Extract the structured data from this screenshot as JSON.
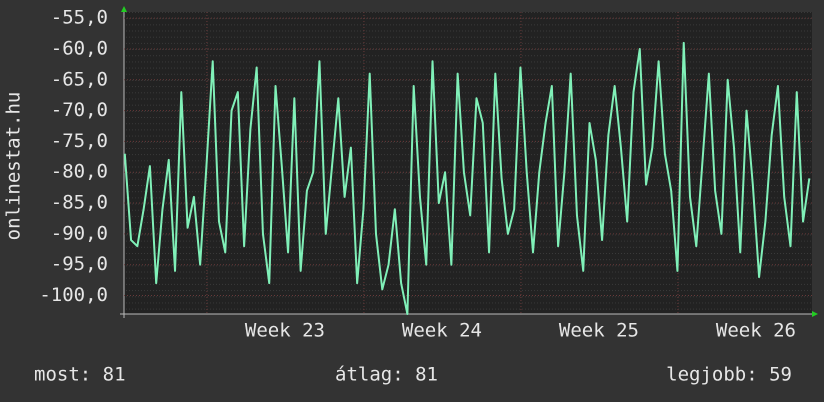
{
  "chart_data": {
    "type": "line",
    "y_label": "onlinestat.hu",
    "x": [
      21.98,
      22.02,
      22.06,
      22.1,
      22.14,
      22.18,
      22.22,
      22.26,
      22.3,
      22.34,
      22.38,
      22.42,
      22.46,
      22.5,
      22.54,
      22.58,
      22.62,
      22.66,
      22.7,
      22.74,
      22.78,
      22.82,
      22.86,
      22.9,
      22.94,
      22.98,
      23.02,
      23.06,
      23.1,
      23.14,
      23.18,
      23.22,
      23.26,
      23.3,
      23.34,
      23.38,
      23.42,
      23.46,
      23.5,
      23.54,
      23.58,
      23.62,
      23.66,
      23.7,
      23.74,
      23.78,
      23.82,
      23.86,
      23.9,
      23.94,
      23.98,
      24.02,
      24.06,
      24.1,
      24.14,
      24.18,
      24.22,
      24.26,
      24.3,
      24.34,
      24.38,
      24.42,
      24.46,
      24.5,
      24.54,
      24.58,
      24.62,
      24.66,
      24.7,
      24.74,
      24.78,
      24.82,
      24.86,
      24.9,
      24.94,
      24.98,
      25.02,
      25.06,
      25.1,
      25.14,
      25.18,
      25.22,
      25.26,
      25.3,
      25.34,
      25.38,
      25.42,
      25.46,
      25.5,
      25.54,
      25.58,
      25.62,
      25.66,
      25.7,
      25.74,
      25.78,
      25.82,
      25.86,
      25.9,
      25.94,
      25.98,
      26.02,
      26.06,
      26.1,
      26.14,
      26.18,
      26.22,
      26.26,
      26.3,
      26.34
    ],
    "series": [
      {
        "color": "#80f0b8",
        "values": [
          -77,
          -91,
          -92,
          -86,
          -79,
          -98,
          -86,
          -78,
          -96,
          -67,
          -89,
          -84,
          -95,
          -79,
          -62,
          -88,
          -93,
          -70,
          -67,
          -92,
          -73,
          -63,
          -90,
          -98,
          -66,
          -79,
          -93,
          -68,
          -96,
          -83,
          -80,
          -62,
          -90,
          -79,
          -68,
          -84,
          -76,
          -98,
          -86,
          -64,
          -90,
          -99,
          -95,
          -86,
          -98,
          -103,
          -66,
          -84,
          -95,
          -62,
          -85,
          -80,
          -95,
          -64,
          -80,
          -87,
          -68,
          -72,
          -93,
          -64,
          -81,
          -90,
          -86,
          -63,
          -80,
          -93,
          -80,
          -72,
          -66,
          -92,
          -80,
          -64,
          -87,
          -96,
          -72,
          -78,
          -91,
          -74,
          -66,
          -76,
          -88,
          -67,
          -60,
          -82,
          -76,
          -62,
          -77,
          -83,
          -96,
          -59,
          -84,
          -92,
          -78,
          -64,
          -83,
          -90,
          -65,
          -76,
          -93,
          -70,
          -82,
          -97,
          -88,
          -74,
          -66,
          -84,
          -92,
          -67,
          -88,
          -81
        ]
      }
    ],
    "xlim": [
      21.975,
      26.357
    ],
    "xticks": [
      {
        "value": 23,
        "label": "Week 23"
      },
      {
        "value": 24,
        "label": "Week 24"
      },
      {
        "value": 25,
        "label": "Week 25"
      },
      {
        "value": 26,
        "label": "Week 26"
      }
    ],
    "ylim": [
      -103,
      -54
    ],
    "yticks": [
      {
        "value": -55,
        "label": "-55,0"
      },
      {
        "value": -60,
        "label": "-60,0"
      },
      {
        "value": -65,
        "label": "-65,0"
      },
      {
        "value": -70,
        "label": "-70,0"
      },
      {
        "value": -75,
        "label": "-75,0"
      },
      {
        "value": -80,
        "label": "-80,0"
      },
      {
        "value": -85,
        "label": "-85,0"
      },
      {
        "value": -90,
        "label": "-90,0"
      },
      {
        "value": -95,
        "label": "-95,0"
      },
      {
        "value": -100,
        "label": "-100,0"
      }
    ],
    "grid": true,
    "stats": [
      "most: 81",
      "átlag: 81",
      "legjobb: 59"
    ]
  }
}
